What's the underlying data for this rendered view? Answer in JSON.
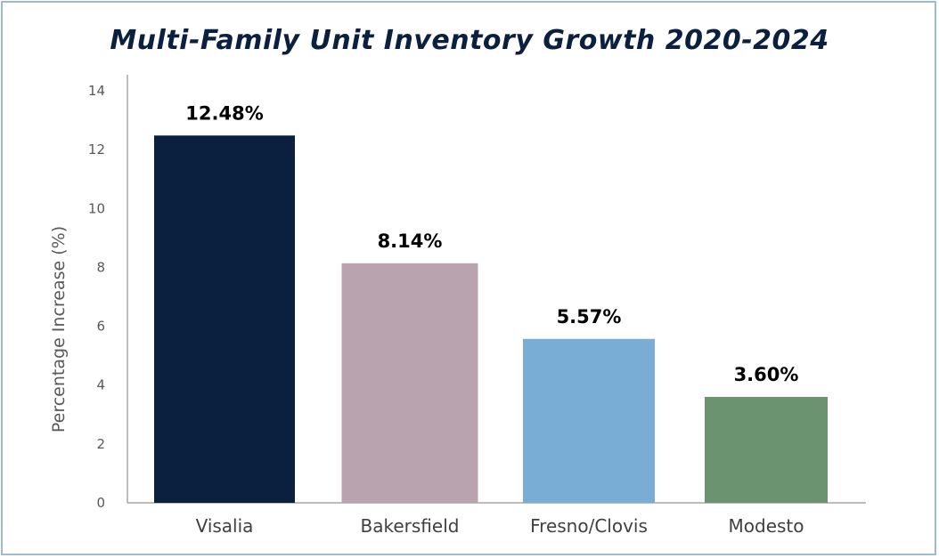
{
  "chart_data": {
    "type": "bar",
    "title": "Multi-Family Unit Inventory Growth 2020-2024",
    "xlabel": "",
    "ylabel": "Percentage Increase (%)",
    "ylim": [
      0,
      14
    ],
    "yticks": [
      "0",
      "2",
      "4",
      "6",
      "8",
      "10",
      "12",
      "14"
    ],
    "grid": false,
    "legend": "none",
    "categories": [
      "Visalia",
      "Bakersfield",
      "Fresno/Clovis",
      "Modesto"
    ],
    "values": [
      12.48,
      8.14,
      5.57,
      3.6
    ],
    "data_labels": [
      "12.48%",
      "8.14%",
      "5.57%",
      "3.60%"
    ],
    "colors": [
      "#0b1f3f",
      "#b8a3af",
      "#7aadd6",
      "#6b9370"
    ]
  }
}
